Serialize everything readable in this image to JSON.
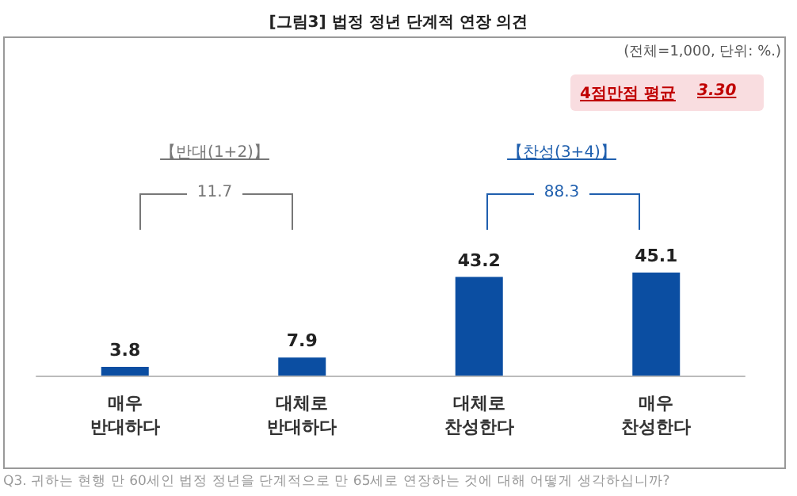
{
  "chart_data": {
    "type": "bar",
    "title": "[그림3] 법정 정년 단계적 연장 의견",
    "categories": [
      "매우\n반대하다",
      "대체로\n반대하다",
      "대체로\n찬성한다",
      "매우\n찬성한다"
    ],
    "values": [
      3.8,
      7.9,
      43.2,
      45.1
    ],
    "color": "#0b4ea2",
    "data_labels": true,
    "annotations": [
      "(전체=1,000, 단위: %.)",
      "4점만점 평균",
      "3.30",
      "【반대(1+2)】",
      "11.7",
      "【찬성(3+4)】",
      "88.3",
      "Q3. 귀하는 현행 만 60세인 법정 정년을 단계적으로 만 65세로 연장하는 것에 대해 어떻게 생각하십니까?"
    ]
  }
}
